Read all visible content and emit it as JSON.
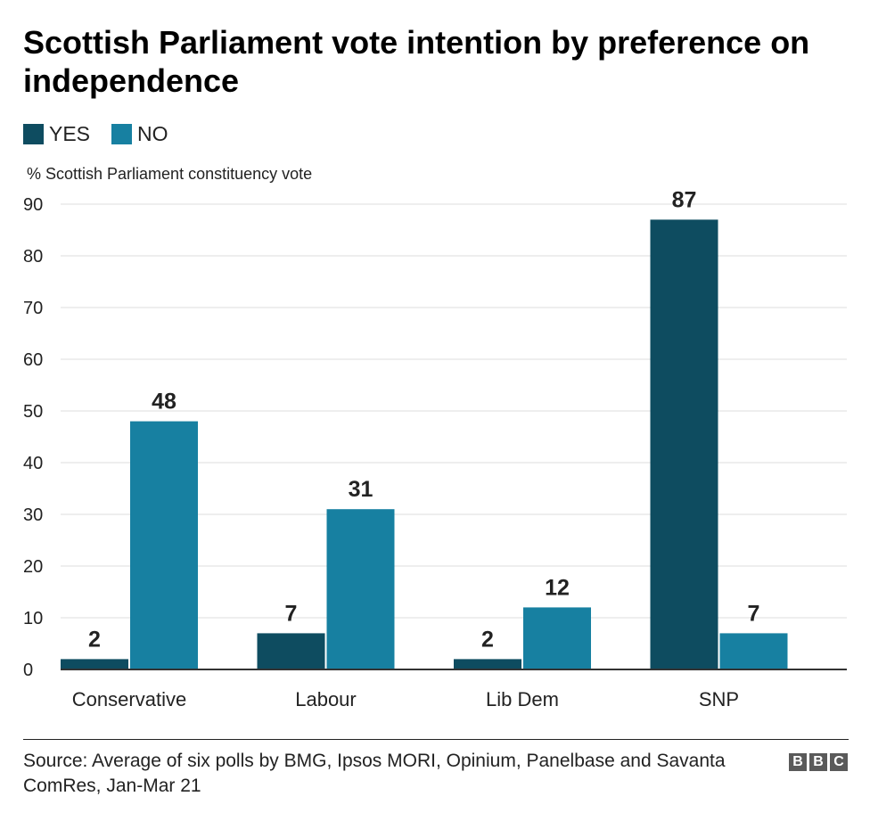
{
  "chart_data": {
    "type": "bar",
    "title": "Scottish Parliament vote intention by preference on independence",
    "ylabel": "% Scottish Parliament constituency vote",
    "xlabel": "",
    "categories": [
      "Conservative",
      "Labour",
      "Lib Dem",
      "SNP"
    ],
    "series": [
      {
        "name": "YES",
        "color": "#0e4c60",
        "values": [
          2,
          7,
          2,
          87
        ]
      },
      {
        "name": "NO",
        "color": "#1780a1",
        "values": [
          48,
          31,
          12,
          7
        ]
      }
    ],
    "ylim": [
      0,
      90
    ],
    "yticks": [
      0,
      10,
      20,
      30,
      40,
      50,
      60,
      70,
      80,
      90
    ],
    "grid": true,
    "legend": "top-left",
    "data_labels": true
  },
  "footer": {
    "source": "Source: Average of six polls by BMG, Ipsos MORI, Opinium, Panelbase and Savanta ComRes, Jan-Mar 21",
    "logo": [
      "B",
      "B",
      "C"
    ]
  }
}
